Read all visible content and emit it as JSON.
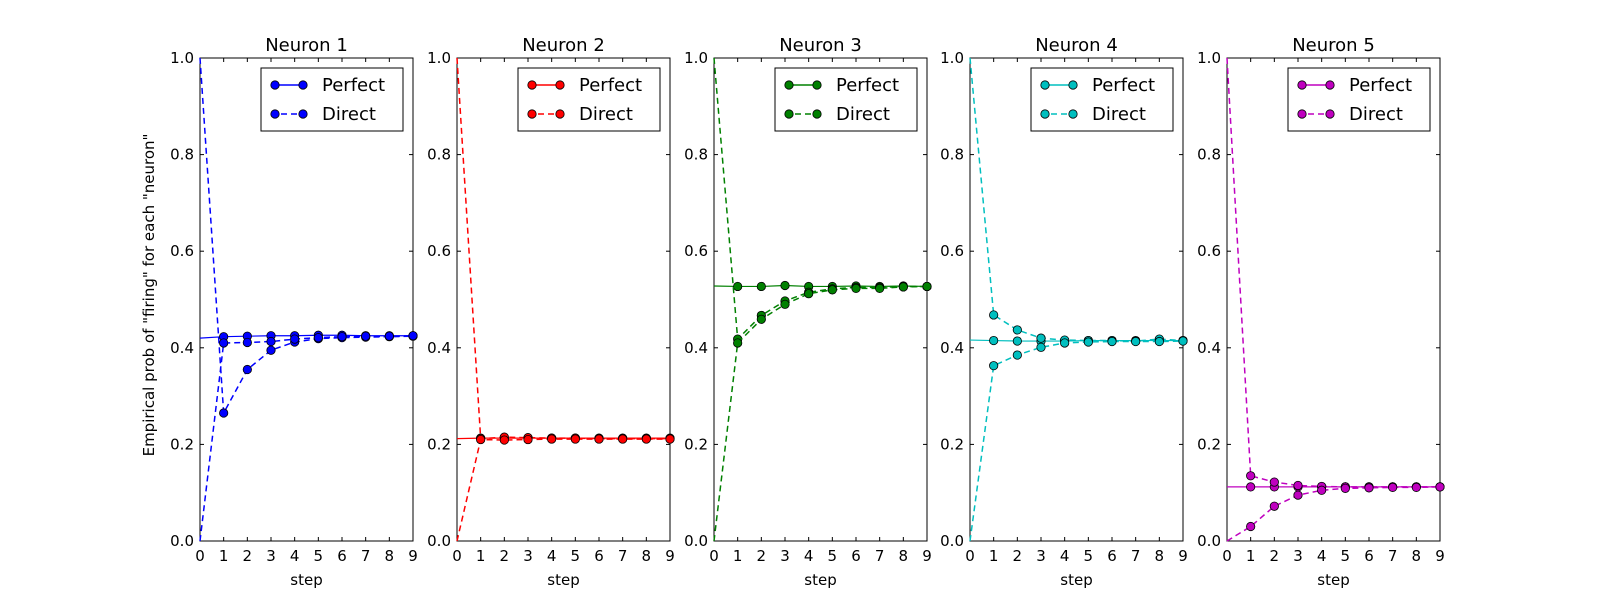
{
  "figure": {
    "ylabel": "Empirical prob of \"firing\" for each \"neuron\"",
    "xlabel": "step"
  },
  "chart_data": [
    {
      "type": "line",
      "title": "Neuron 1",
      "color": "#0000ff",
      "xlabel": "step",
      "xlim": [
        0,
        9
      ],
      "ylim": [
        0,
        1
      ],
      "xticks": [
        0,
        1,
        2,
        3,
        4,
        5,
        6,
        7,
        8,
        9
      ],
      "yticks": [
        "0.0",
        "0.2",
        "0.4",
        "0.6",
        "0.8",
        "1.0"
      ],
      "legend": {
        "position": "top-right",
        "entries": [
          "Perfect",
          "Direct"
        ]
      },
      "series": [
        {
          "name": "Perfect",
          "style": "solid",
          "runs": [
            {
              "x": [
                0,
                1,
                2,
                3,
                4,
                5,
                6,
                7,
                8,
                9
              ],
              "y": [
                0.42,
                0.423,
                0.424,
                0.425,
                0.425,
                0.426,
                0.426,
                0.425,
                0.425,
                0.425
              ]
            }
          ]
        },
        {
          "name": "Direct",
          "style": "dashed",
          "runs": [
            {
              "x": [
                0,
                1,
                2,
                3,
                4,
                5,
                6,
                7,
                8,
                9
              ],
              "y": [
                1.0,
                0.265,
                0.355,
                0.395,
                0.412,
                0.419,
                0.421,
                0.422,
                0.423,
                0.424
              ]
            },
            {
              "x": [
                0,
                1,
                2,
                3,
                4,
                5,
                6,
                7,
                8,
                9
              ],
              "y": [
                0.0,
                0.41,
                0.411,
                0.413,
                0.418,
                0.421,
                0.423,
                0.424,
                0.424,
                0.425
              ]
            }
          ]
        }
      ]
    },
    {
      "type": "line",
      "title": "Neuron 2",
      "color": "#ff0000",
      "xlabel": "step",
      "xlim": [
        0,
        9
      ],
      "ylim": [
        0,
        1
      ],
      "xticks": [
        0,
        1,
        2,
        3,
        4,
        5,
        6,
        7,
        8,
        9
      ],
      "yticks": [
        "0.0",
        "0.2",
        "0.4",
        "0.6",
        "0.8",
        "1.0"
      ],
      "legend": {
        "position": "top-right",
        "entries": [
          "Perfect",
          "Direct"
        ]
      },
      "series": [
        {
          "name": "Perfect",
          "style": "solid",
          "runs": [
            {
              "x": [
                0,
                1,
                2,
                3,
                4,
                5,
                6,
                7,
                8,
                9
              ],
              "y": [
                0.212,
                0.213,
                0.213,
                0.213,
                0.213,
                0.213,
                0.213,
                0.213,
                0.213,
                0.213
              ]
            }
          ]
        },
        {
          "name": "Direct",
          "style": "dashed",
          "runs": [
            {
              "x": [
                0,
                1,
                2,
                3,
                4,
                5,
                6,
                7,
                8,
                9
              ],
              "y": [
                1.0,
                0.212,
                0.215,
                0.214,
                0.213,
                0.213,
                0.212,
                0.212,
                0.212,
                0.212
              ]
            },
            {
              "x": [
                0,
                1,
                2,
                3,
                4,
                5,
                6,
                7,
                8,
                9
              ],
              "y": [
                0.0,
                0.21,
                0.209,
                0.21,
                0.211,
                0.211,
                0.211,
                0.211,
                0.211,
                0.211
              ]
            }
          ]
        }
      ]
    },
    {
      "type": "line",
      "title": "Neuron 3",
      "color": "#008000",
      "xlabel": "step",
      "xlim": [
        0,
        9
      ],
      "ylim": [
        0,
        1
      ],
      "xticks": [
        0,
        1,
        2,
        3,
        4,
        5,
        6,
        7,
        8,
        9
      ],
      "yticks": [
        "0.0",
        "0.2",
        "0.4",
        "0.6",
        "0.8",
        "1.0"
      ],
      "legend": {
        "position": "top-right",
        "entries": [
          "Perfect",
          "Direct"
        ]
      },
      "series": [
        {
          "name": "Perfect",
          "style": "solid",
          "runs": [
            {
              "x": [
                0,
                1,
                2,
                3,
                4,
                5,
                6,
                7,
                8,
                9
              ],
              "y": [
                0.528,
                0.527,
                0.527,
                0.529,
                0.527,
                0.527,
                0.528,
                0.527,
                0.528,
                0.527
              ]
            }
          ]
        },
        {
          "name": "Direct",
          "style": "dashed",
          "runs": [
            {
              "x": [
                0,
                1,
                2,
                3,
                4,
                5,
                6,
                7,
                8,
                9
              ],
              "y": [
                1.0,
                0.418,
                0.467,
                0.497,
                0.515,
                0.522,
                0.525,
                0.525,
                0.527,
                0.527
              ]
            },
            {
              "x": [
                0,
                1,
                2,
                3,
                4,
                5,
                6,
                7,
                8,
                9
              ],
              "y": [
                0.0,
                0.41,
                0.459,
                0.49,
                0.512,
                0.52,
                0.523,
                0.523,
                0.526,
                0.527
              ]
            }
          ]
        }
      ]
    },
    {
      "type": "line",
      "title": "Neuron 4",
      "color": "#00bfbf",
      "xlabel": "step",
      "xlim": [
        0,
        9
      ],
      "ylim": [
        0,
        1
      ],
      "xticks": [
        0,
        1,
        2,
        3,
        4,
        5,
        6,
        7,
        8,
        9
      ],
      "yticks": [
        "0.0",
        "0.2",
        "0.4",
        "0.6",
        "0.8",
        "1.0"
      ],
      "legend": {
        "position": "top-right",
        "entries": [
          "Perfect",
          "Direct"
        ]
      },
      "series": [
        {
          "name": "Perfect",
          "style": "solid",
          "runs": [
            {
              "x": [
                0,
                1,
                2,
                3,
                4,
                5,
                6,
                7,
                8,
                9
              ],
              "y": [
                0.416,
                0.415,
                0.414,
                0.414,
                0.414,
                0.415,
                0.415,
                0.415,
                0.415,
                0.415
              ]
            }
          ]
        },
        {
          "name": "Direct",
          "style": "dashed",
          "runs": [
            {
              "x": [
                0,
                1,
                2,
                3,
                4,
                5,
                6,
                7,
                8,
                9
              ],
              "y": [
                1.0,
                0.468,
                0.437,
                0.42,
                0.416,
                0.415,
                0.415,
                0.414,
                0.418,
                0.415
              ]
            },
            {
              "x": [
                0,
                1,
                2,
                3,
                4,
                5,
                6,
                7,
                8,
                9
              ],
              "y": [
                0.0,
                0.363,
                0.385,
                0.401,
                0.41,
                0.412,
                0.413,
                0.413,
                0.413,
                0.414
              ]
            }
          ]
        }
      ]
    },
    {
      "type": "line",
      "title": "Neuron 5",
      "color": "#bf00bf",
      "xlabel": "step",
      "xlim": [
        0,
        9
      ],
      "ylim": [
        0,
        1
      ],
      "xticks": [
        0,
        1,
        2,
        3,
        4,
        5,
        6,
        7,
        8,
        9
      ],
      "yticks": [
        "0.0",
        "0.2",
        "0.4",
        "0.6",
        "0.8",
        "1.0"
      ],
      "legend": {
        "position": "top-right",
        "entries": [
          "Perfect",
          "Direct"
        ]
      },
      "series": [
        {
          "name": "Perfect",
          "style": "solid",
          "runs": [
            {
              "x": [
                0,
                1,
                2,
                3,
                4,
                5,
                6,
                7,
                8,
                9
              ],
              "y": [
                0.112,
                0.112,
                0.112,
                0.112,
                0.112,
                0.112,
                0.112,
                0.112,
                0.112,
                0.112
              ]
            }
          ]
        },
        {
          "name": "Direct",
          "style": "dashed",
          "runs": [
            {
              "x": [
                0,
                1,
                2,
                3,
                4,
                5,
                6,
                7,
                8,
                9
              ],
              "y": [
                1.0,
                0.135,
                0.122,
                0.115,
                0.113,
                0.112,
                0.112,
                0.112,
                0.112,
                0.112
              ]
            },
            {
              "x": [
                0,
                1,
                2,
                3,
                4,
                5,
                6,
                7,
                8,
                9
              ],
              "y": [
                0.0,
                0.03,
                0.072,
                0.095,
                0.105,
                0.109,
                0.11,
                0.111,
                0.111,
                0.112
              ]
            }
          ]
        }
      ]
    }
  ]
}
